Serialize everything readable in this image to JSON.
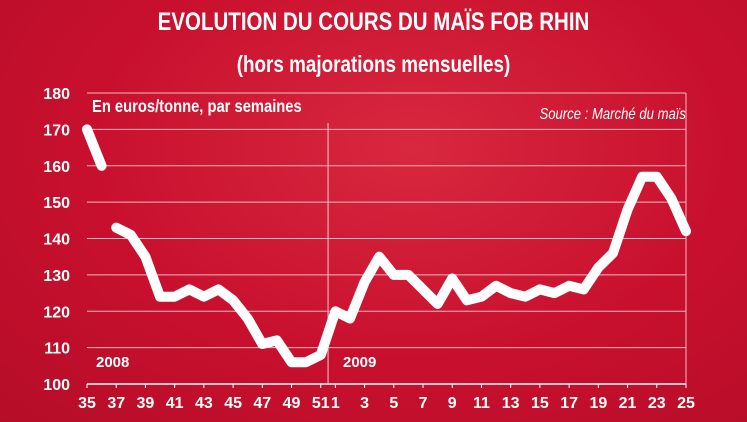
{
  "chart_data": {
    "type": "line",
    "title": "EVOLUTION DU COURS DU MAÏS FOB RHIN",
    "subtitle": "(hors majorations mensuelles)",
    "unit_label": "En euros/tonne, par semaines",
    "source": "Source : Marché du maïs",
    "ylim": [
      100,
      180
    ],
    "y_ticks": [
      "100",
      "110",
      "120",
      "130",
      "140",
      "150",
      "160",
      "170",
      "180"
    ],
    "grid": true,
    "x_labels": [
      "35",
      "37",
      "39",
      "41",
      "43",
      "45",
      "47",
      "49",
      "51",
      "1",
      "3",
      "5",
      "7",
      "9",
      "11",
      "13",
      "15",
      "17",
      "19",
      "21",
      "23",
      "25"
    ],
    "year_labels": [
      "2008",
      "2009"
    ],
    "colors": {
      "background": "#c8102e",
      "line": "#ffffff",
      "grid": "#f1b8c0"
    },
    "series": [
      {
        "segments": [
          [
            [
              35,
              170
            ],
            [
              36,
              160
            ]
          ],
          [
            [
              37,
              143
            ],
            [
              38,
              141
            ],
            [
              39,
              135
            ],
            [
              40,
              124
            ],
            [
              41,
              124
            ],
            [
              42,
              126
            ],
            [
              43,
              124
            ],
            [
              44,
              126
            ],
            [
              45,
              123
            ],
            [
              46,
              118
            ],
            [
              47,
              111
            ],
            [
              48,
              112
            ],
            [
              49,
              106
            ],
            [
              50,
              106
            ],
            [
              51,
              108
            ],
            [
              52,
              120
            ],
            [
              53,
              118
            ],
            [
              54,
              128
            ],
            [
              55,
              135
            ],
            [
              56,
              130
            ],
            [
              57,
              130
            ],
            [
              58,
              126
            ],
            [
              59,
              122
            ],
            [
              60,
              129
            ],
            [
              61,
              123
            ],
            [
              62,
              124
            ],
            [
              63,
              127
            ],
            [
              64,
              125
            ],
            [
              65,
              124
            ],
            [
              66,
              126
            ],
            [
              67,
              125
            ],
            [
              68,
              127
            ],
            [
              69,
              126
            ],
            [
              70,
              132
            ],
            [
              71,
              136
            ],
            [
              72,
              148
            ],
            [
              73,
              157
            ],
            [
              74,
              157
            ],
            [
              75,
              151
            ],
            [
              76,
              142
            ]
          ]
        ]
      }
    ]
  }
}
